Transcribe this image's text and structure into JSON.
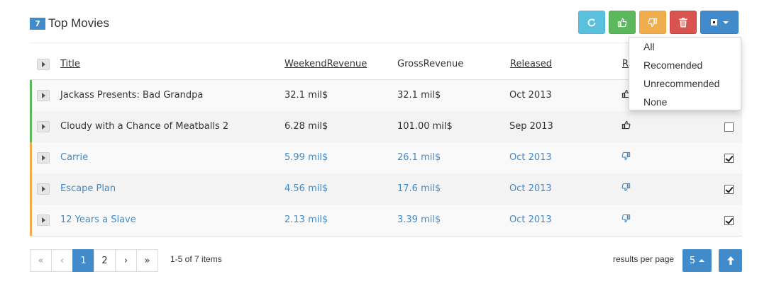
{
  "header": {
    "count": "7",
    "title": "Top Movies"
  },
  "columns": {
    "title": "Title",
    "weekend": "WeekendRevenue",
    "gross": "GrossRevenue",
    "released": "Released",
    "recommended": "R"
  },
  "rows": [
    {
      "title": "Jackass Presents: Bad Grandpa",
      "weekend": "32.1 mil$",
      "gross": "32.1 mil$",
      "released": "Oct 2013",
      "recommended": true,
      "selected": false
    },
    {
      "title": "Cloudy with a Chance of Meatballs 2",
      "weekend": "6.28 mil$",
      "gross": "101.00 mil$",
      "released": "Sep 2013",
      "recommended": true,
      "selected": false
    },
    {
      "title": "Carrie",
      "weekend": "5.99 mil$",
      "gross": "26.1 mil$",
      "released": "Oct 2013",
      "recommended": false,
      "selected": true
    },
    {
      "title": "Escape Plan",
      "weekend": "4.56 mil$",
      "gross": "17.6 mil$",
      "released": "Oct 2013",
      "recommended": false,
      "selected": true
    },
    {
      "title": "12 Years a Slave",
      "weekend": "2.13 mil$",
      "gross": "3.39 mil$",
      "released": "Oct 2013",
      "recommended": false,
      "selected": true
    }
  ],
  "dropdown": {
    "items": [
      "All",
      "Recomended",
      "Unrecommended",
      "None"
    ]
  },
  "pager": {
    "first": "«",
    "prev": "‹",
    "pages": [
      "1",
      "2"
    ],
    "next": "›",
    "last": "»",
    "current": "1",
    "info": "1-5 of 7 items"
  },
  "page_size": {
    "label": "results per page",
    "value": "5"
  },
  "icons": {
    "refresh": "refresh-icon",
    "recommend": "thumbs-up-icon",
    "unrecommend": "thumbs-down-icon",
    "delete": "trash-icon",
    "select": "checkbox-select-icon",
    "scroll_top": "arrow-up-icon"
  },
  "colors": {
    "primary": "#428bca",
    "info": "#5bc0de",
    "success": "#5cb85c",
    "warning": "#f0ad4e",
    "danger": "#d9534f"
  }
}
